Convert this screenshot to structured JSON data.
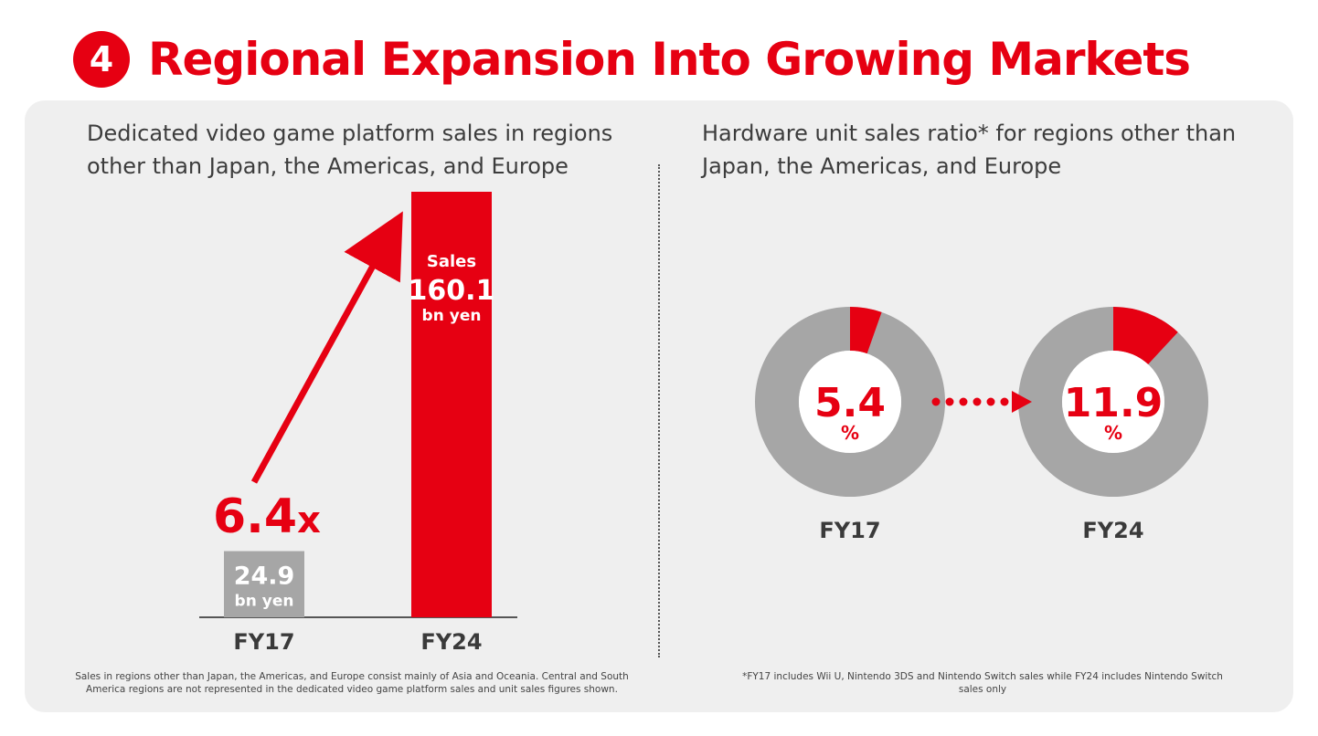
{
  "header": {
    "number": "4",
    "title": "Regional Expansion Into Growing Markets"
  },
  "left_panel": {
    "title": "Dedicated video game platform sales in regions other than Japan, the Americas, and Europe",
    "multiplier": "6.4",
    "multiplier_suffix": "x",
    "footnote": "Sales in regions other than Japan, the Americas, and Europe consist mainly of Asia and Oceania. Central and South America regions are not represented in the dedicated video game platform sales and unit sales figures shown."
  },
  "right_panel": {
    "title": "Hardware unit sales ratio* for regions other than Japan, the Americas, and Europe",
    "footnote": "*FY17 includes Wii U, Nintendo 3DS and Nintendo Switch sales while FY24 includes Nintendo Switch sales only"
  },
  "colors": {
    "accent": "#e60012",
    "gray_bar": "#a6a6a6",
    "donut_gray": "#a6a6a6",
    "panel_bg": "#efefef"
  },
  "chart_data": [
    {
      "type": "bar",
      "categories": [
        "FY17",
        "FY24"
      ],
      "values": [
        24.9,
        160.1
      ],
      "labels": [
        {
          "top": "",
          "value": "24.9",
          "unit": "bn yen"
        },
        {
          "top": "Sales",
          "value": "160.1",
          "unit": "bn yen"
        }
      ],
      "ylim": [
        0,
        160.1
      ],
      "series_colors": [
        "#a6a6a6",
        "#e60012"
      ]
    },
    {
      "type": "pie",
      "categories": [
        "FY17",
        "FY24"
      ],
      "values": [
        5.4,
        11.9
      ],
      "value_labels": [
        "5.4",
        "11.9"
      ],
      "unit": "%",
      "max": 100
    }
  ]
}
